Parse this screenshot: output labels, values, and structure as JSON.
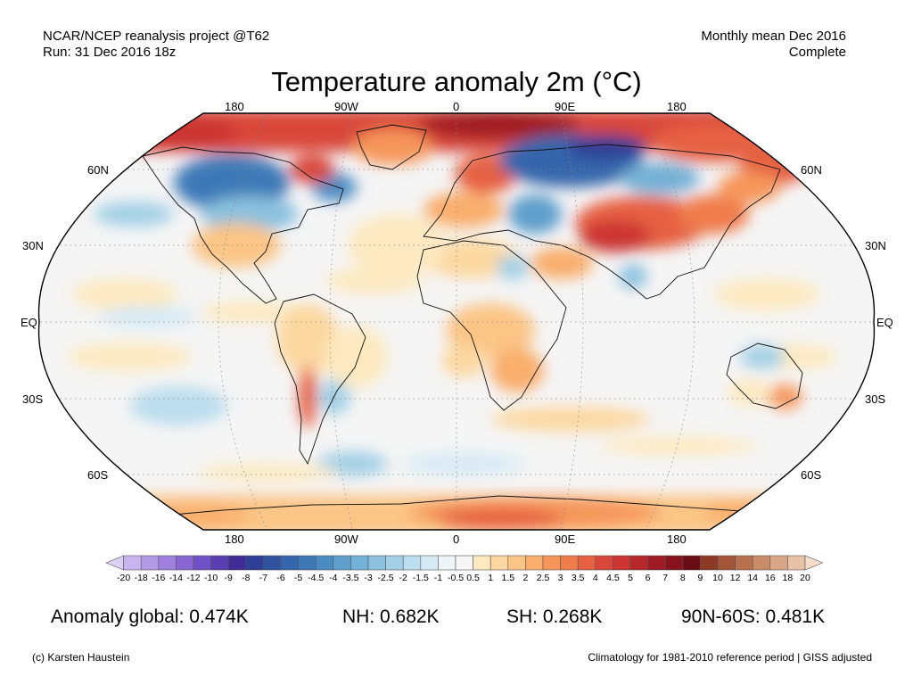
{
  "header": {
    "source_line1": "NCAR/NCEP reanalysis project @T62",
    "source_line2": "Run: 31 Dec 2016 18z",
    "period_line1": "Monthly mean Dec 2016",
    "period_line2": "Complete"
  },
  "title": "Temperature anomaly 2m (°C)",
  "map": {
    "projection": "Robinson",
    "lon_labels_top": [
      "180",
      "90W",
      "0",
      "90E",
      "180"
    ],
    "lon_labels_bottom": [
      "180",
      "90W",
      "0",
      "90E",
      "180"
    ],
    "lat_labels_left": [
      "60N",
      "30N",
      "EQ",
      "30S",
      "60S"
    ],
    "lat_labels_right": [
      "60N",
      "30N",
      "EQ",
      "30S",
      "60S"
    ]
  },
  "colorbar": {
    "labels": [
      "-20",
      "-18",
      "-16",
      "-14",
      "-12",
      "-10",
      "-9",
      "-8",
      "-7",
      "-6",
      "-5",
      "-4.5",
      "-4",
      "-3.5",
      "-3",
      "-2.5",
      "-2",
      "-1.5",
      "-1",
      "-0.5",
      "0.5",
      "1",
      "1.5",
      "2",
      "2.5",
      "3",
      "3.5",
      "4",
      "4.5",
      "5",
      "6",
      "7",
      "8",
      "9",
      "10",
      "12",
      "14",
      "16",
      "18",
      "20"
    ],
    "colors": [
      "#dcd0f5",
      "#c8b4ee",
      "#b39ae6",
      "#9f80dd",
      "#8a66d3",
      "#7050c6",
      "#5a3cb3",
      "#3f2c94",
      "#2f3f95",
      "#30539f",
      "#3566ac",
      "#3e79b7",
      "#4a8cc2",
      "#5e9fcc",
      "#74b1d6",
      "#8bc1de",
      "#a3d0e6",
      "#bcdeee",
      "#d6eaf5",
      "#edf5fa",
      "#f7f7f7",
      "#fde9c0",
      "#fcd8a0",
      "#fbc585",
      "#f9ae6c",
      "#f6965a",
      "#f07c4c",
      "#e66042",
      "#d9473a",
      "#cc3532",
      "#b7282b",
      "#a01c24",
      "#85121c",
      "#6a0c14",
      "#8c3a26",
      "#a35538",
      "#b8714f",
      "#c98c68",
      "#d9a685",
      "#e8c2a6",
      "#f5dccb"
    ]
  },
  "stats": {
    "global": "Anomaly global: 0.474K",
    "nh": "NH: 0.682K",
    "sh": "SH: 0.268K",
    "arctic": "90N-60S: 0.481K"
  },
  "footer": {
    "credit": "(c) Karsten Haustein",
    "note": "Climatology for 1981-2010 reference period | GISS adjusted"
  }
}
